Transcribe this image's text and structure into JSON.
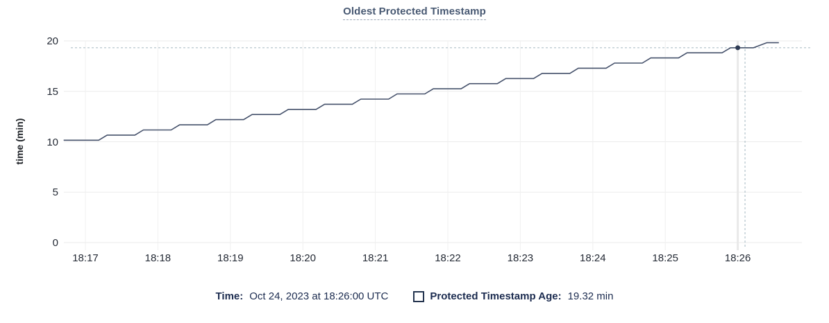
{
  "title": "Oldest Protected Timestamp",
  "legend": {
    "time_label": "Time:",
    "time_value": "Oct 24, 2023 at 18:26:00 UTC",
    "series_label": "Protected Timestamp Age:",
    "series_value": "19.32 min",
    "series_checkbox_icon": "empty-square-icon"
  },
  "colors": {
    "title": "#475872",
    "line": "#44506a",
    "dot": "#2e3b54",
    "crosshair": "#a4b7c1",
    "grid_horizontal": "#ebebeb",
    "grid_vertical": "#f0f0f0",
    "hover_band": "#e9e9e9",
    "axis_text": "#242a35",
    "legend_text": "#1b2b4f"
  },
  "chart_data": {
    "type": "line",
    "title": "Oldest Protected Timestamp",
    "xlabel": "",
    "ylabel": "time (min)",
    "ylim": [
      0,
      20
    ],
    "y_ticks": [
      "0",
      "5",
      "10",
      "15",
      "20"
    ],
    "x_ticks": [
      "18:17",
      "18:18",
      "18:19",
      "18:20",
      "18:21",
      "18:22",
      "18:23",
      "18:24",
      "18:25",
      "18:26"
    ],
    "x_tick_interval_seconds": 60,
    "grid": true,
    "legend_position": "bottom",
    "series": [
      {
        "name": "Protected Timestamp Age",
        "unit": "min",
        "points_t_seconds_from_18_17_vs_min": [
          [
            -18,
            10.15
          ],
          [
            11,
            10.15
          ],
          [
            18,
            10.66
          ],
          [
            41,
            10.66
          ],
          [
            48,
            11.17
          ],
          [
            71,
            11.17
          ],
          [
            78,
            11.68
          ],
          [
            101,
            11.68
          ],
          [
            108,
            12.19
          ],
          [
            131,
            12.19
          ],
          [
            138,
            12.7
          ],
          [
            161,
            12.7
          ],
          [
            168,
            13.21
          ],
          [
            191,
            13.21
          ],
          [
            198,
            13.72
          ],
          [
            221,
            13.72
          ],
          [
            228,
            14.23
          ],
          [
            251,
            14.23
          ],
          [
            258,
            14.74
          ],
          [
            281,
            14.74
          ],
          [
            288,
            15.25
          ],
          [
            311,
            15.25
          ],
          [
            318,
            15.76
          ],
          [
            341,
            15.76
          ],
          [
            348,
            16.27
          ],
          [
            371,
            16.27
          ],
          [
            378,
            16.78
          ],
          [
            401,
            16.78
          ],
          [
            408,
            17.29
          ],
          [
            431,
            17.29
          ],
          [
            438,
            17.8
          ],
          [
            461,
            17.8
          ],
          [
            468,
            18.31
          ],
          [
            491,
            18.31
          ],
          [
            498,
            18.82
          ],
          [
            527,
            18.82
          ],
          [
            534,
            19.32
          ],
          [
            553,
            19.32
          ],
          [
            564,
            19.82
          ],
          [
            574,
            19.82
          ]
        ]
      }
    ],
    "hover": {
      "time": "18:26:00",
      "x_seconds": 540,
      "crosshair_x_seconds": 546,
      "value_min": 19.32
    }
  }
}
